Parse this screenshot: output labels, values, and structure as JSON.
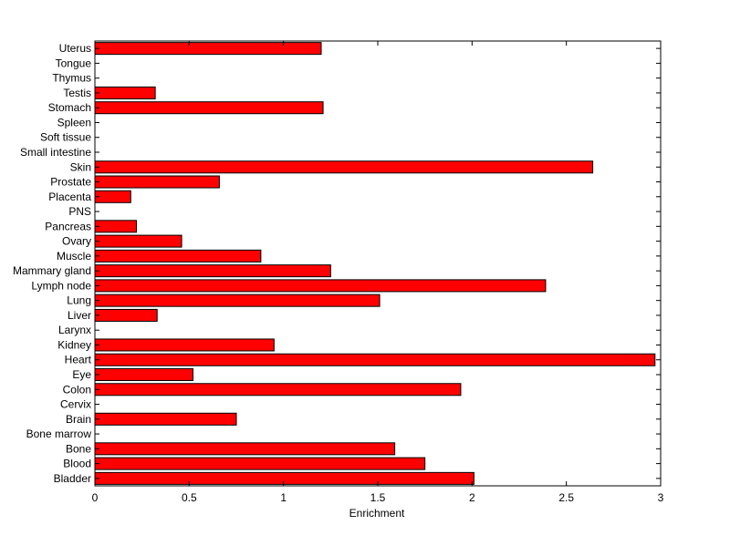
{
  "chart_data": {
    "type": "bar",
    "orientation": "horizontal",
    "title": "",
    "xlabel": "Enrichment",
    "ylabel": "",
    "xlim": [
      0,
      3
    ],
    "x_ticks": [
      0,
      0.5,
      1,
      1.5,
      2,
      2.5,
      3
    ],
    "x_tick_labels": [
      "0",
      "0.5",
      "1",
      "1.5",
      "2",
      "2.5",
      "3"
    ],
    "grid": false,
    "legend": "none",
    "bar_color": "#ff0000",
    "bar_edge_color": "#000000",
    "categories": [
      "Bladder",
      "Blood",
      "Bone",
      "Bone marrow",
      "Brain",
      "Cervix",
      "Colon",
      "Eye",
      "Heart",
      "Kidney",
      "Larynx",
      "Liver",
      "Lung",
      "Lymph node",
      "Mammary gland",
      "Muscle",
      "Ovary",
      "Pancreas",
      "PNS",
      "Placenta",
      "Prostate",
      "Skin",
      "Small intestine",
      "Soft tissue",
      "Spleen",
      "Stomach",
      "Testis",
      "Thymus",
      "Tongue",
      "Uterus"
    ],
    "values": [
      2.01,
      1.75,
      1.59,
      0,
      0.75,
      0,
      1.94,
      0.52,
      2.97,
      0.95,
      0,
      0.33,
      1.51,
      2.39,
      1.25,
      0.88,
      0.46,
      0.22,
      0,
      0.19,
      0.66,
      2.64,
      0,
      0,
      0,
      1.21,
      0.32,
      0,
      0,
      1.2
    ]
  }
}
